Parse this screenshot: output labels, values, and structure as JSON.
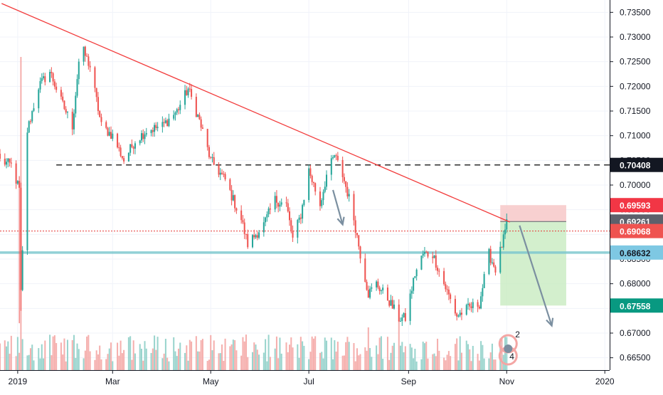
{
  "chart_data": {
    "type": "candlestick",
    "title": "",
    "xlabel": "",
    "ylabel": "",
    "ylim": [
      0.6625,
      0.7375
    ],
    "y_ticks": [
      0.665,
      0.67,
      0.675,
      0.68,
      0.685,
      0.69,
      0.695,
      0.7,
      0.705,
      0.71,
      0.715,
      0.72,
      0.725,
      0.73,
      0.735
    ],
    "y_tick_labels": [
      "0.66500",
      "0.67000",
      "0.67500",
      "0.68000",
      "0.68500",
      "0.69000",
      "0.69500",
      "0.70000",
      "0.70500",
      "0.71000",
      "0.71500",
      "0.72000",
      "0.72500",
      "0.73000",
      "0.73500"
    ],
    "x_axis": {
      "range": [
        "2018-12-21",
        "2020-01-04"
      ],
      "ticks": [
        {
          "date": "2019-01-01",
          "label": "2019"
        },
        {
          "date": "2019-03-01",
          "label": "Mar"
        },
        {
          "date": "2019-05-01",
          "label": "May"
        },
        {
          "date": "2019-07-01",
          "label": "Jul"
        },
        {
          "date": "2019-09-01",
          "label": "Sep"
        },
        {
          "date": "2019-11-01",
          "label": "Nov"
        },
        {
          "date": "2020-01-01",
          "label": "2020"
        }
      ]
    },
    "price_path": [
      [
        "2018-12-21",
        0.705
      ],
      [
        "2018-12-28",
        0.704
      ],
      [
        "2019-01-02",
        0.699
      ],
      [
        "2019-01-03",
        0.678
      ],
      [
        "2019-01-07",
        0.711
      ],
      [
        "2019-01-14",
        0.72
      ],
      [
        "2019-01-21",
        0.723
      ],
      [
        "2019-01-28",
        0.717
      ],
      [
        "2019-02-04",
        0.712
      ],
      [
        "2019-02-08",
        0.725
      ],
      [
        "2019-02-11",
        0.727
      ],
      [
        "2019-02-15",
        0.724
      ],
      [
        "2019-02-22",
        0.712
      ],
      [
        "2019-03-01",
        0.71
      ],
      [
        "2019-03-08",
        0.705
      ],
      [
        "2019-03-15",
        0.709
      ],
      [
        "2019-03-22",
        0.711
      ],
      [
        "2019-04-01",
        0.712
      ],
      [
        "2019-04-10",
        0.715
      ],
      [
        "2019-04-17",
        0.7195
      ],
      [
        "2019-04-24",
        0.713
      ],
      [
        "2019-05-01",
        0.705
      ],
      [
        "2019-05-10",
        0.701
      ],
      [
        "2019-05-20",
        0.693
      ],
      [
        "2019-05-24",
        0.688
      ],
      [
        "2019-06-03",
        0.692
      ],
      [
        "2019-06-10",
        0.697
      ],
      [
        "2019-06-17",
        0.696
      ],
      [
        "2019-06-21",
        0.689
      ],
      [
        "2019-06-26",
        0.694
      ],
      [
        "2019-07-01",
        0.703
      ],
      [
        "2019-07-08",
        0.696
      ],
      [
        "2019-07-12",
        0.702
      ],
      [
        "2019-07-17",
        0.706
      ],
      [
        "2019-07-22",
        0.702
      ],
      [
        "2019-07-28",
        0.695
      ],
      [
        "2019-08-02",
        0.686
      ],
      [
        "2019-08-07",
        0.678
      ],
      [
        "2019-08-12",
        0.68
      ],
      [
        "2019-08-19",
        0.677
      ],
      [
        "2019-08-26",
        0.673
      ],
      [
        "2019-08-30",
        0.673
      ],
      [
        "2019-09-05",
        0.682
      ],
      [
        "2019-09-10",
        0.686
      ],
      [
        "2019-09-16",
        0.686
      ],
      [
        "2019-09-23",
        0.68
      ],
      [
        "2019-10-01",
        0.6735
      ],
      [
        "2019-10-08",
        0.675
      ],
      [
        "2019-10-15",
        0.676
      ],
      [
        "2019-10-21",
        0.686
      ],
      [
        "2019-10-25",
        0.683
      ],
      [
        "2019-10-30",
        0.689
      ],
      [
        "2019-11-01",
        0.692
      ]
    ],
    "volume_series_color_up": "#8ecfc8",
    "volume_series_color_down": "#f4a6a4",
    "candle_up_color": "#26a69a",
    "candle_down_color": "#ef5350",
    "trendline": {
      "from": [
        "2018-12-22",
        0.7368
      ],
      "to": [
        "2019-11-03",
        0.6925
      ],
      "color": "#f23c3c"
    },
    "horizontal_levels": [
      {
        "value": 0.70408,
        "style": "dashed",
        "color": "#2b2b2b",
        "from": "2019-01-25"
      },
      {
        "value": 0.68632,
        "style": "solid",
        "color": "#7ec8cf"
      },
      {
        "value": 0.69068,
        "style": "dotted",
        "color": "#e53935"
      }
    ],
    "position": {
      "side": "short",
      "entry": 0.69261,
      "stop": 0.69593,
      "target": 0.67558,
      "from": "2019-10-28",
      "to": "2019-12-08",
      "stop_zone_color": "#f7c8c8",
      "target_zone_color": "#c8ebc0"
    },
    "arrows": [
      {
        "from": [
          "2019-07-16",
          0.699
        ],
        "to": [
          "2019-07-22",
          0.692
        ],
        "color": "#7b8fa0"
      },
      {
        "from": [
          "2019-11-09",
          0.6918
        ],
        "to": [
          "2019-11-29",
          0.6715
        ],
        "color": "#7b8fa0"
      }
    ],
    "price_labels": [
      {
        "value": 0.70408,
        "text": "0.70408",
        "bg": "#131722",
        "fg": "#ffffff"
      },
      {
        "value": 0.69593,
        "text": "0.69593",
        "bg": "#f23645",
        "fg": "#ffffff"
      },
      {
        "value": 0.69261,
        "text": "0.69261",
        "bg": "#5d606b",
        "fg": "#ffffff"
      },
      {
        "value": 0.69068,
        "text": "0.69068",
        "bg": "#ef5350",
        "fg": "#ffffff"
      },
      {
        "value": 0.68632,
        "text": "0.68632",
        "bg": "#7ec8e3",
        "fg": "#131722"
      },
      {
        "value": 0.67558,
        "text": "0.67558",
        "bg": "#089981",
        "fg": "#ffffff"
      }
    ],
    "grid": true,
    "legend": "none",
    "event_badge": {
      "date": "2019-11-01",
      "numbers": [
        "2",
        "4"
      ]
    }
  }
}
